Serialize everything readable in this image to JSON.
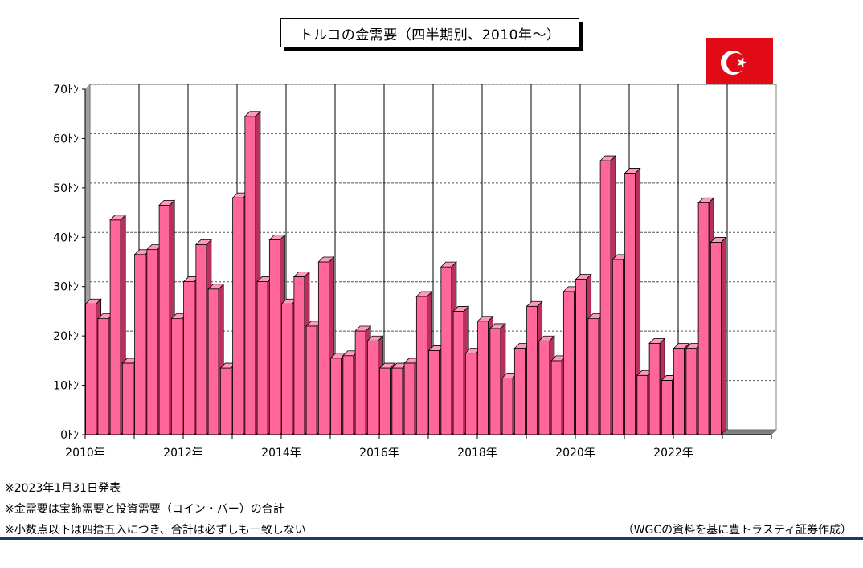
{
  "title": "トルコの金需要（四半期別、2010年～）",
  "chart_data": {
    "type": "bar",
    "title": "トルコの金需要（四半期別、2010年～）",
    "xlabel": "",
    "ylabel": "",
    "ylim": [
      0,
      70
    ],
    "y_ticks": [
      "0ﾄﾝ",
      "10ﾄﾝ",
      "20ﾄﾝ",
      "30ﾄﾝ",
      "40ﾄﾝ",
      "50ﾄﾝ",
      "60ﾄﾝ",
      "70ﾄﾝ"
    ],
    "x_tick_labels": [
      "2010年",
      "2012年",
      "2014年",
      "2016年",
      "2018年",
      "2020年",
      "2022年"
    ],
    "categories": [
      "2010Q1",
      "2010Q2",
      "2010Q3",
      "2010Q4",
      "2011Q1",
      "2011Q2",
      "2011Q3",
      "2011Q4",
      "2012Q1",
      "2012Q2",
      "2012Q3",
      "2012Q4",
      "2013Q1",
      "2013Q2",
      "2013Q3",
      "2013Q4",
      "2014Q1",
      "2014Q2",
      "2014Q3",
      "2014Q4",
      "2015Q1",
      "2015Q2",
      "2015Q3",
      "2015Q4",
      "2016Q1",
      "2016Q2",
      "2016Q3",
      "2016Q4",
      "2017Q1",
      "2017Q2",
      "2017Q3",
      "2017Q4",
      "2018Q1",
      "2018Q2",
      "2018Q3",
      "2018Q4",
      "2019Q1",
      "2019Q2",
      "2019Q3",
      "2019Q4",
      "2020Q1",
      "2020Q2",
      "2020Q3",
      "2020Q4",
      "2021Q1",
      "2021Q2",
      "2021Q3",
      "2021Q4",
      "2022Q1",
      "2022Q2",
      "2022Q3",
      "2022Q4"
    ],
    "values": [
      26.5,
      23.5,
      43.5,
      14.5,
      36.5,
      37.5,
      46.5,
      23.5,
      31,
      38.5,
      29.5,
      13.5,
      48,
      64.5,
      31,
      39.5,
      26.5,
      32,
      22,
      35,
      15.5,
      16,
      21,
      19,
      13.5,
      13.5,
      14.5,
      28,
      17,
      34,
      25,
      16.5,
      23,
      21.5,
      11.5,
      17.5,
      26,
      19,
      15,
      29,
      31.5,
      23.5,
      55.5,
      35.5,
      53,
      12,
      18.5,
      11,
      17.5,
      17.5,
      47,
      39
    ],
    "grid": true,
    "bar_color": "#ff6699"
  },
  "notes": [
    "※2023年1月31日発表",
    "※金需要は宝飾需要と投資需要（コイン・バー）の合計",
    "※小数点以下は四捨五入につき、合計は必ずしも一致しない"
  ],
  "source": "（WGCの資料を基に豊トラスティ証券作成）",
  "flag": {
    "icon": "turkey-flag-icon",
    "color": "#e30a17"
  }
}
